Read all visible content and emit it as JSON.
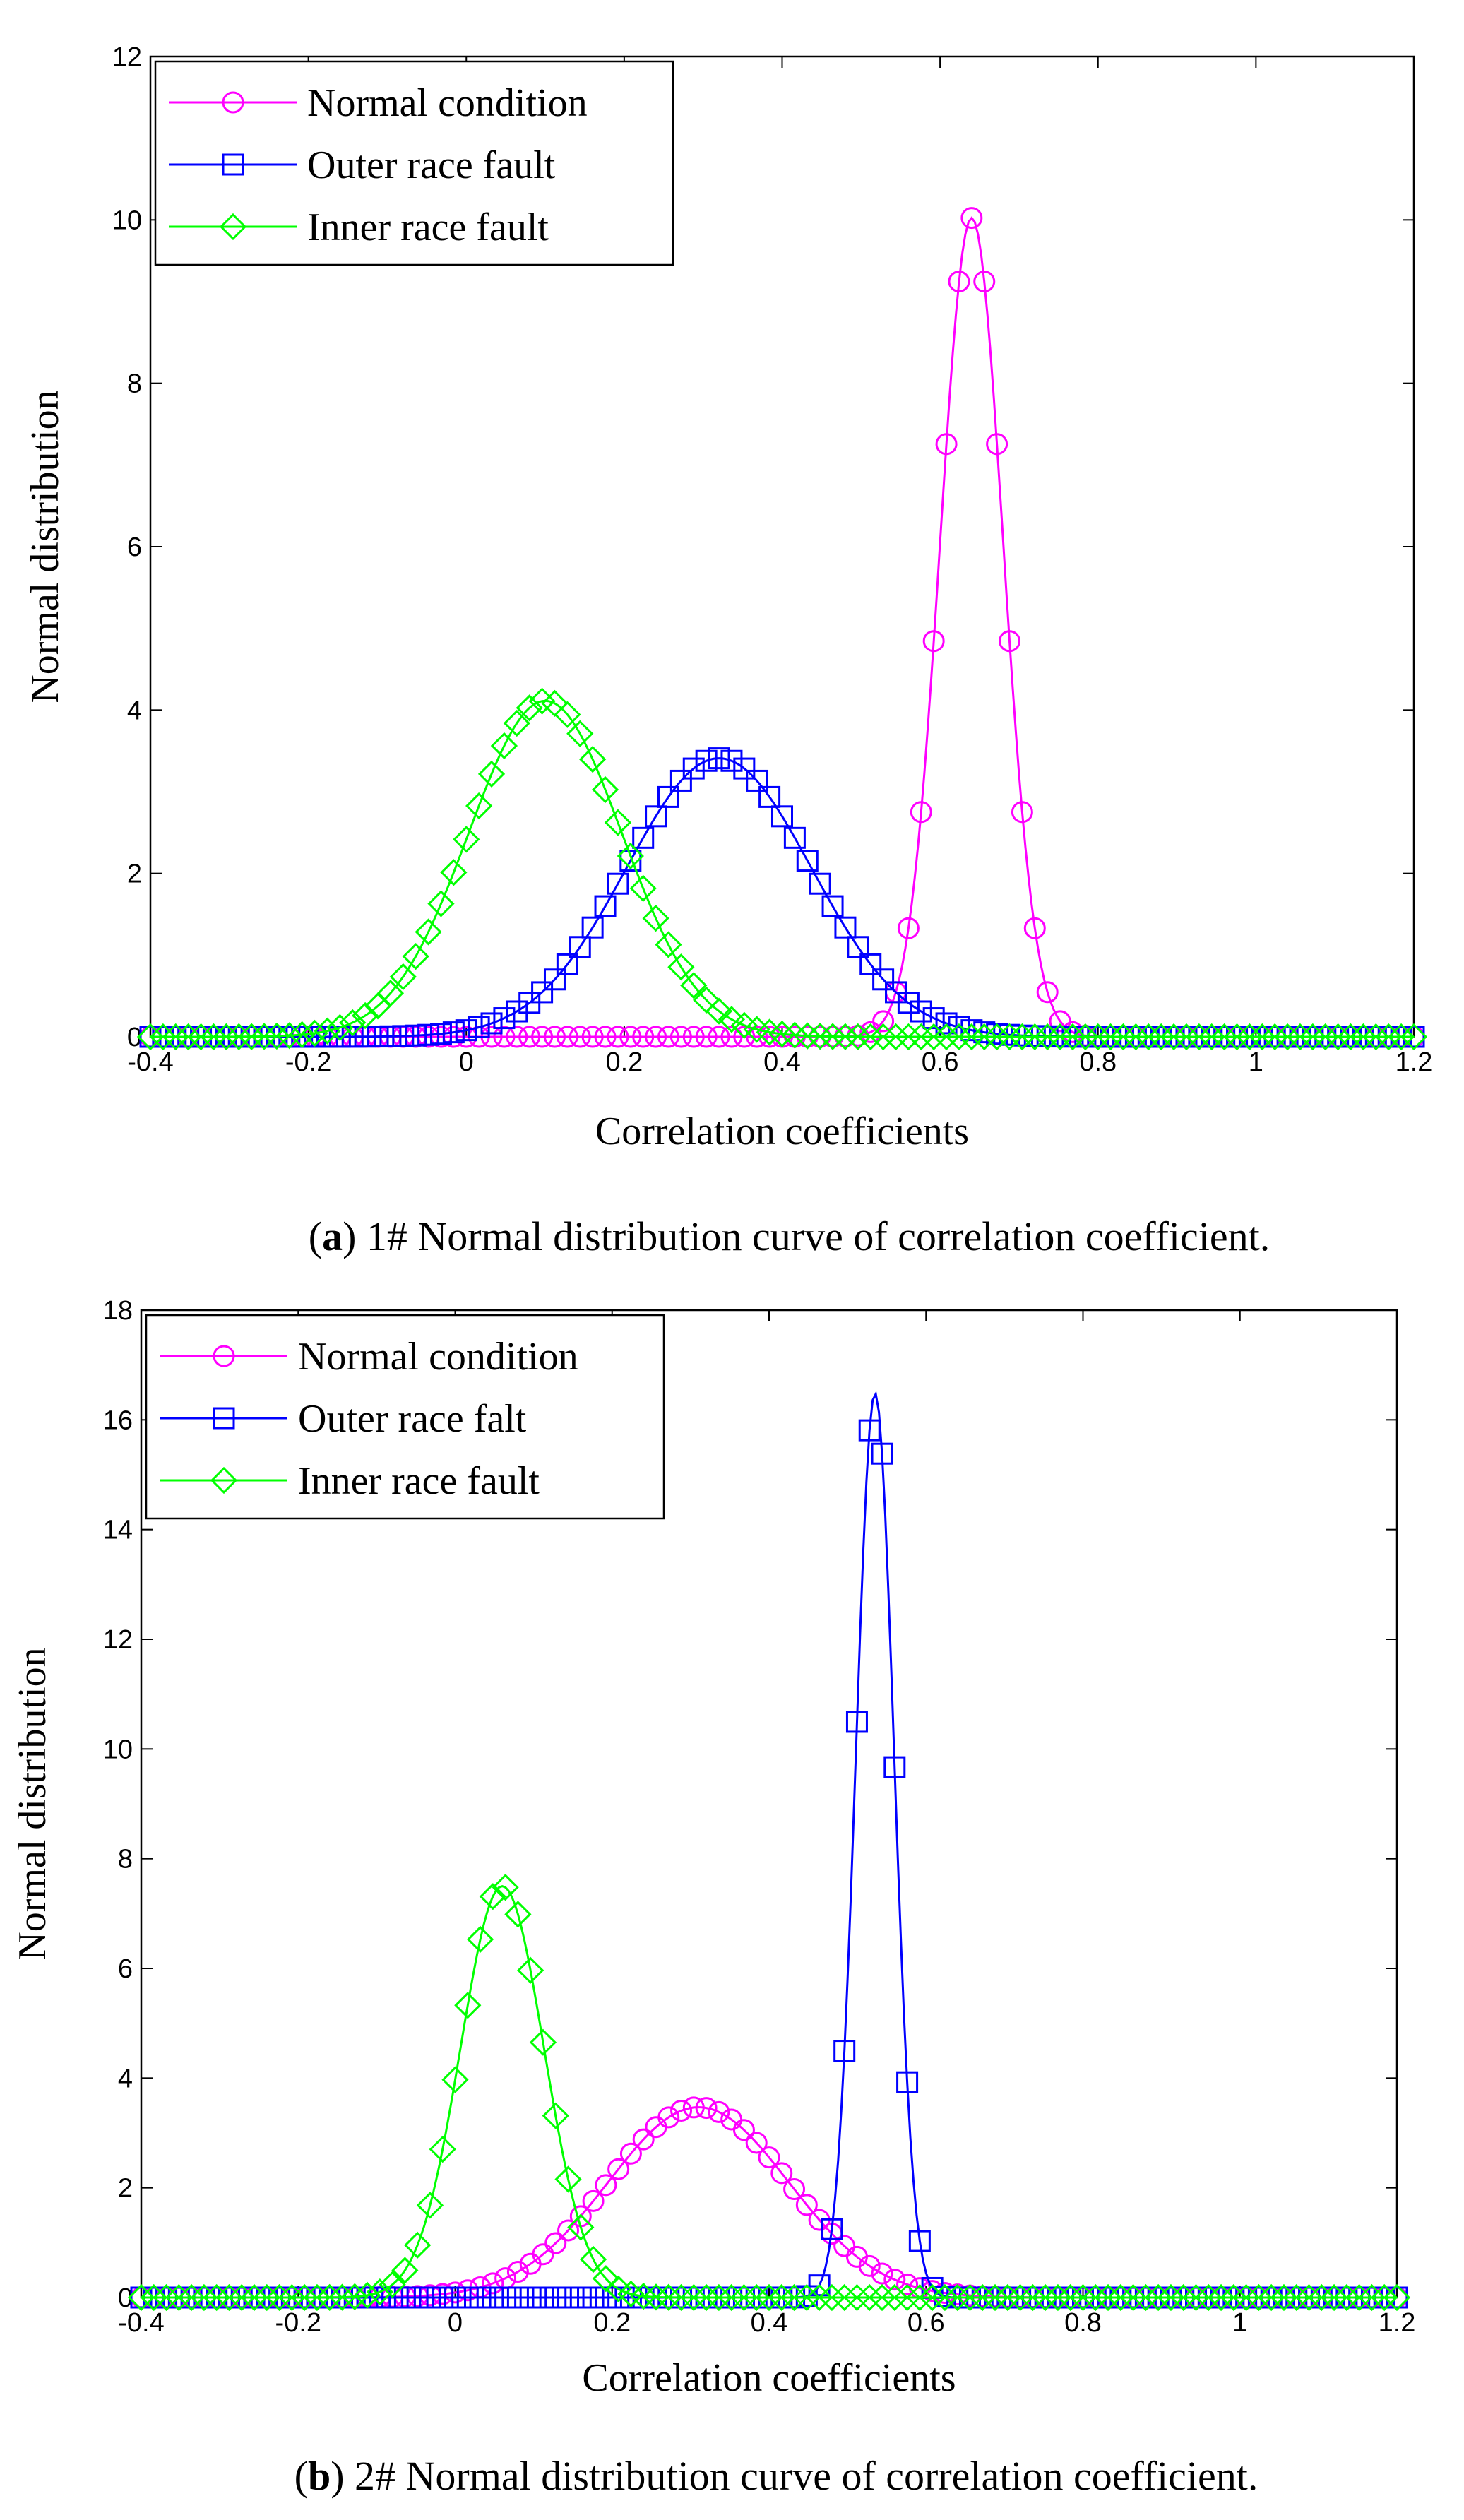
{
  "chart_data": [
    {
      "type": "line",
      "panel": "a",
      "xlabel": "Correlation coefficients",
      "ylabel": "Normal distribution",
      "xlim": [
        -0.4,
        1.2
      ],
      "ylim": [
        0,
        12
      ],
      "xticks": [
        -0.4,
        -0.2,
        0,
        0.2,
        0.4,
        0.6,
        0.8,
        1,
        1.2
      ],
      "xtick_labels": [
        "-0.4",
        "-0.2",
        "0",
        "0.2",
        "0.4",
        "0.6",
        "0.8",
        "1",
        "1.2"
      ],
      "yticks": [
        0,
        2,
        4,
        6,
        8,
        10,
        12
      ],
      "ytick_labels": [
        "0",
        "2",
        "4",
        "6",
        "8",
        "10",
        "12"
      ],
      "legend_position": "top-left",
      "caption_label": "a",
      "caption_text": ") 1# Normal distribution curve of correlation coefficient.",
      "series": [
        {
          "name": "Normal condition",
          "color": "#ff00ff",
          "marker": "circle",
          "mean": 0.64,
          "sd": 0.0398,
          "step": 0.016
        },
        {
          "name": "Outer race fault",
          "color": "#0000ff",
          "marker": "square",
          "mean": 0.32,
          "sd": 0.117,
          "step": 0.016
        },
        {
          "name": "Inner race fault",
          "color": "#00ff00",
          "marker": "diamond",
          "mean": 0.1,
          "sd": 0.097,
          "step": 0.016
        }
      ]
    },
    {
      "type": "line",
      "panel": "b",
      "xlabel": "Correlation coefficients",
      "ylabel": "Normal distribution",
      "xlim": [
        -0.4,
        1.2
      ],
      "ylim": [
        0,
        18
      ],
      "xticks": [
        -0.4,
        -0.2,
        0,
        0.2,
        0.4,
        0.6,
        0.8,
        1,
        1.2
      ],
      "xtick_labels": [
        "-0.4",
        "-0.2",
        "0",
        "0.2",
        "0.4",
        "0.6",
        "0.8",
        "1",
        "1.2"
      ],
      "yticks": [
        0,
        2,
        4,
        6,
        8,
        10,
        12,
        14,
        16,
        18
      ],
      "ytick_labels": [
        "0",
        "2",
        "4",
        "6",
        "8",
        "10",
        "12",
        "14",
        "16",
        "18"
      ],
      "legend_position": "top-left",
      "caption_label": "b",
      "caption_text": ") 2# Normal distribution curve of correlation coefficient.",
      "series": [
        {
          "name": "Normal condition",
          "color": "#ff00ff",
          "marker": "circle",
          "mean": 0.31,
          "sd": 0.115,
          "step": 0.016
        },
        {
          "name": "Outer race falt",
          "color": "#0000ff",
          "marker": "square",
          "mean": 0.535,
          "sd": 0.0242,
          "step": 0.016
        },
        {
          "name": "Inner race fault",
          "color": "#00ff00",
          "marker": "diamond",
          "mean": 0.06,
          "sd": 0.0532,
          "step": 0.016
        }
      ]
    }
  ]
}
